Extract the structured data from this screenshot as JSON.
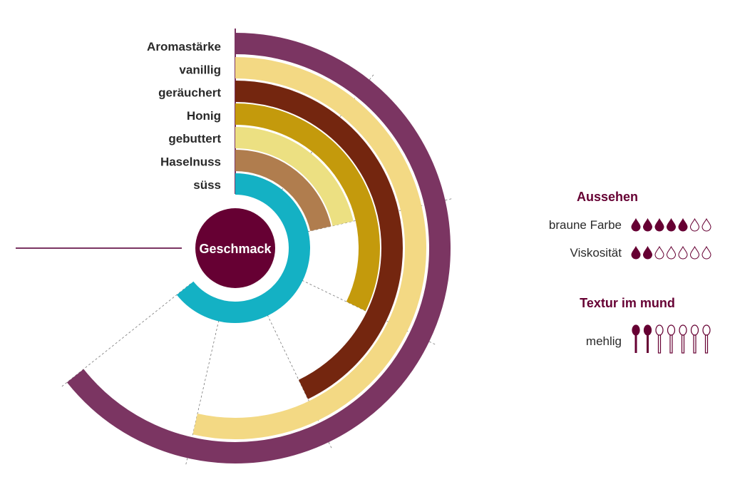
{
  "chart_data": {
    "type": "radial-bar",
    "center_label": "Geschmack",
    "scale_max": 7,
    "series": [
      {
        "name": "Aromastärke",
        "value": 6,
        "color": "#7b3562"
      },
      {
        "name": "vanillig",
        "value": 5,
        "color": "#f3d984"
      },
      {
        "name": "geräuchert",
        "value": 4,
        "color": "#74260f"
      },
      {
        "name": "Honig",
        "value": 3,
        "color": "#c49a0c"
      },
      {
        "name": "gebuttert",
        "value": 2,
        "color": "#ece082"
      },
      {
        "name": "Haselnuss",
        "value": 2,
        "color": "#b07d4e"
      },
      {
        "name": "süss",
        "value": 6,
        "color": "#14b1c4"
      }
    ]
  },
  "side": {
    "aussehen": {
      "title": "Aussehen",
      "items": [
        {
          "label": "braune Farbe",
          "value": 5,
          "max": 7,
          "icon": "drop-icon"
        },
        {
          "label": "Viskosität",
          "value": 2,
          "max": 7,
          "icon": "drop-icon"
        }
      ]
    },
    "textur": {
      "title": "Textur im mund",
      "items": [
        {
          "label": "mehlig",
          "value": 2,
          "max": 7,
          "icon": "spoon-icon"
        }
      ]
    }
  },
  "colors": {
    "accent": "#660033",
    "center": "#660033"
  }
}
